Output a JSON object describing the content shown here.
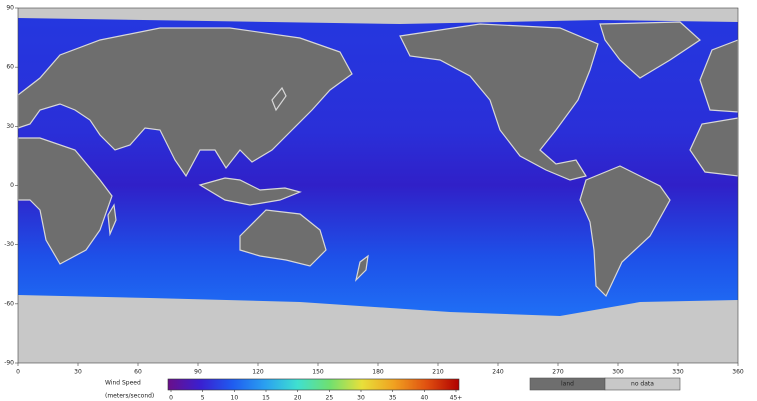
{
  "map": {
    "xlim": [
      0,
      360
    ],
    "ylim": [
      -90,
      90
    ],
    "xticks": [
      0,
      30,
      60,
      90,
      120,
      150,
      180,
      210,
      240,
      270,
      300,
      330,
      360
    ],
    "yticks": [
      90,
      60,
      30,
      0,
      -30,
      -60,
      -90
    ],
    "colorbar": {
      "title": "Wind Speed",
      "units": "(meters/second)",
      "lim": [
        0,
        45
      ],
      "ticks": [
        0,
        5,
        10,
        15,
        20,
        25,
        30,
        35,
        40,
        {
          "value": 45,
          "label": "45+"
        }
      ],
      "colors": [
        "#6a0f8a",
        "#3a1fd0",
        "#1f5cf0",
        "#2aa0f0",
        "#3fe0d0",
        "#6fe070",
        "#e8e03a",
        "#f0a020",
        "#e05010",
        "#b00000"
      ]
    },
    "legend": [
      {
        "label": "land",
        "color": "#6e6e6e"
      },
      {
        "label": "no data",
        "color": "#c8c8c8"
      }
    ]
  }
}
